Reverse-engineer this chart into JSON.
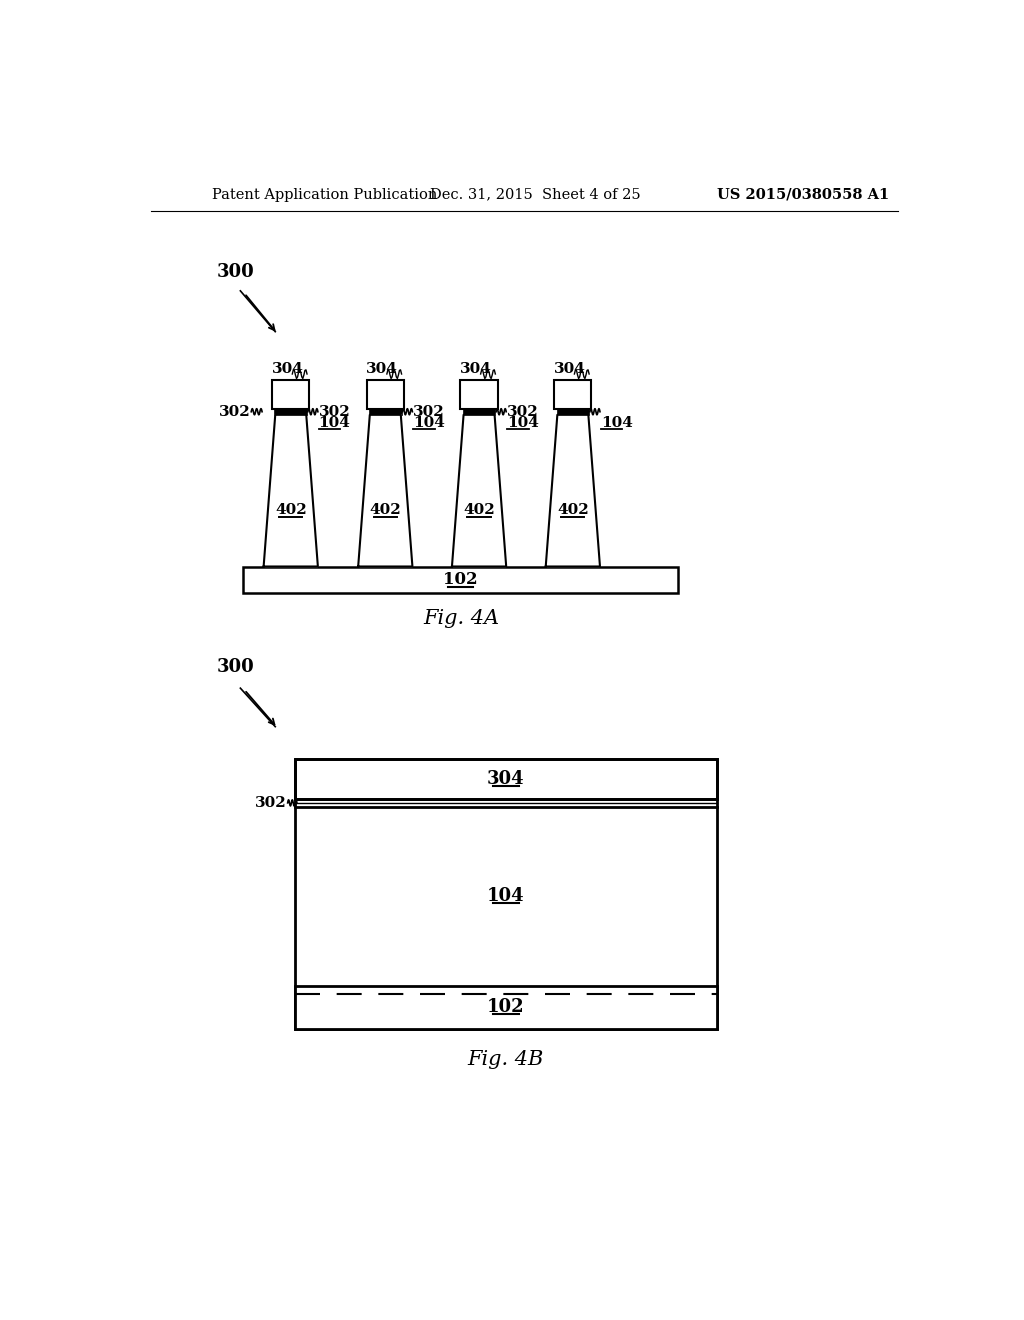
{
  "bg_color": "#ffffff",
  "header_left": "Patent Application Publication",
  "header_mid": "Dec. 31, 2015  Sheet 4 of 25",
  "header_right": "US 2015/0380558 A1",
  "fig4a_label": "Fig. 4A",
  "fig4b_label": "Fig. 4B"
}
